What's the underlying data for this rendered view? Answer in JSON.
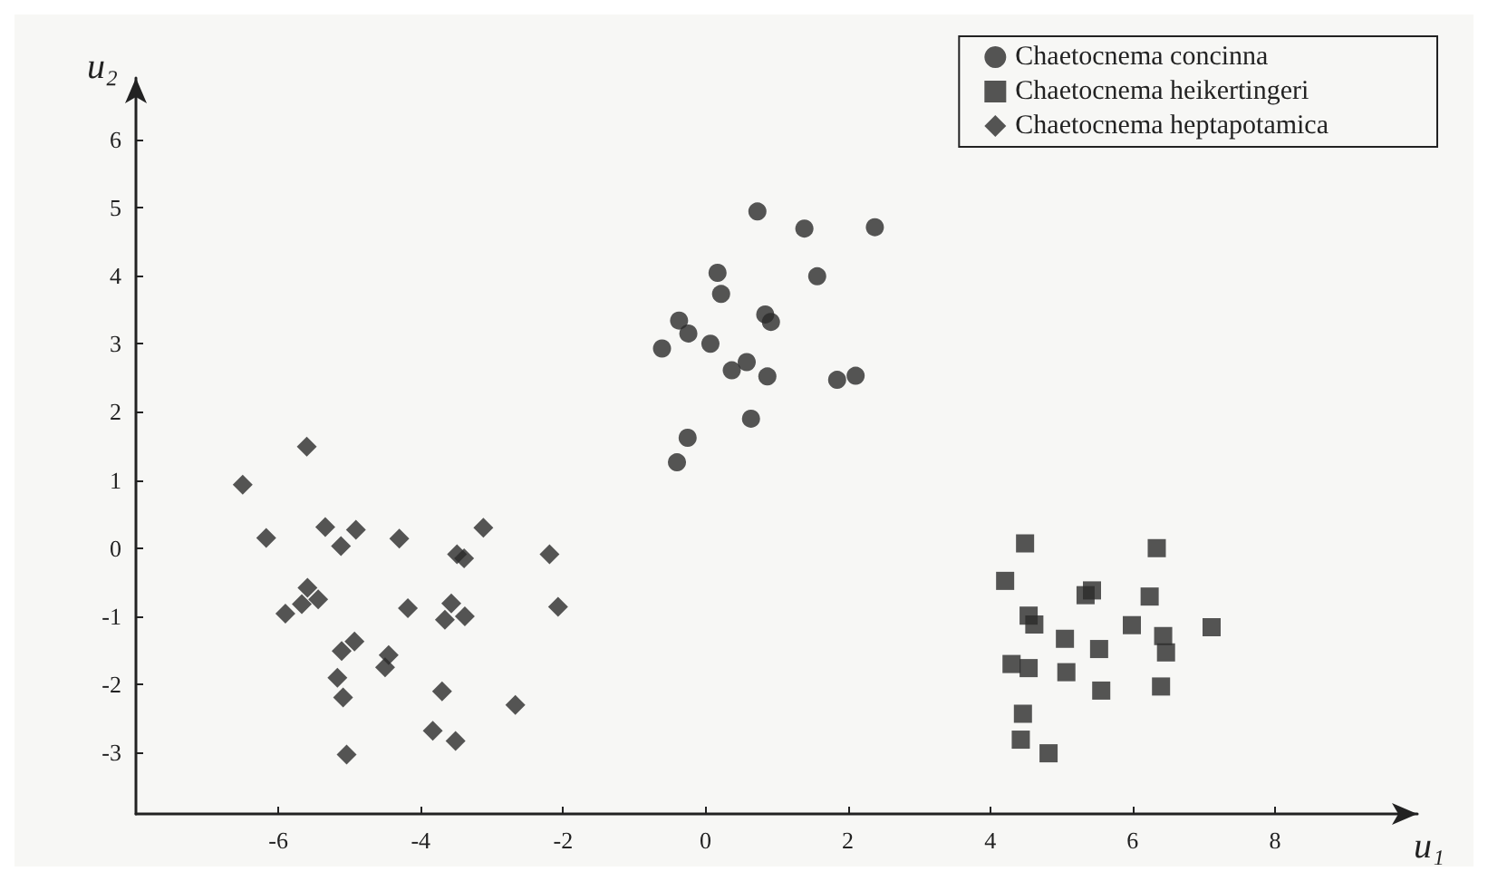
{
  "chart_data": {
    "type": "scatter",
    "xlabel": "u₁",
    "ylabel": "u₂",
    "xlim": [
      -8,
      10
    ],
    "ylim": [
      -3.9,
      6.9
    ],
    "xticks": [
      -6,
      -4,
      -2,
      0,
      2,
      4,
      6,
      8
    ],
    "yticks": [
      -3,
      -2,
      -1,
      0,
      1,
      2,
      3,
      4,
      5,
      6
    ],
    "grid": false,
    "legend": "top right",
    "series": [
      {
        "name": "Chaetocnema concinna",
        "color": "#2b2b2b",
        "marker": "circle",
        "x": [
          0.73,
          1.39,
          2.38,
          0.17,
          1.57,
          0.22,
          0.84,
          0.92,
          -0.37,
          -0.24,
          -0.61,
          0.07,
          0.37,
          0.58,
          0.87,
          1.85,
          2.11,
          0.64,
          -0.25,
          -0.4
        ],
        "values": [
          4.94,
          4.69,
          4.71,
          4.04,
          3.99,
          3.73,
          3.43,
          3.32,
          3.34,
          3.15,
          2.93,
          3.0,
          2.61,
          2.73,
          2.52,
          2.47,
          2.53,
          1.9,
          1.62,
          1.26
        ]
      },
      {
        "name": "Chaetocnema heikertingeri",
        "color": "#2b2b2b",
        "marker": "square",
        "x": [
          4.49,
          6.34,
          4.21,
          5.43,
          5.34,
          6.24,
          4.54,
          4.62,
          5.99,
          7.11,
          6.43,
          5.05,
          6.47,
          5.53,
          4.3,
          4.54,
          5.07,
          5.56,
          6.4,
          4.46,
          4.43,
          4.82
        ],
        "values": [
          0.07,
          0.0,
          -0.48,
          -0.62,
          -0.69,
          -0.71,
          -0.99,
          -1.12,
          -1.13,
          -1.16,
          -1.29,
          -1.33,
          -1.53,
          -1.48,
          -1.7,
          -1.76,
          -1.82,
          -2.09,
          -2.03,
          -2.43,
          -2.81,
          -3.01
        ]
      },
      {
        "name": "Chaetocnema heptapotamica",
        "color": "#2b2b2b",
        "marker": "diamond",
        "x": [
          -5.6,
          -6.5,
          -6.17,
          -5.34,
          -4.91,
          -5.12,
          -4.3,
          -3.12,
          -3.49,
          -3.39,
          -2.19,
          -5.59,
          -5.67,
          -5.44,
          -5.9,
          -4.18,
          -3.57,
          -3.66,
          -3.38,
          -2.07,
          -4.93,
          -5.11,
          -4.45,
          -4.5,
          -5.17,
          -5.09,
          -3.7,
          -2.67,
          -3.83,
          -3.51,
          -5.04
        ],
        "values": [
          1.49,
          0.93,
          0.15,
          0.31,
          0.27,
          0.03,
          0.14,
          0.3,
          -0.09,
          -0.15,
          -0.09,
          -0.58,
          -0.82,
          -0.75,
          -0.96,
          -0.88,
          -0.81,
          -1.05,
          -1.0,
          -0.86,
          -1.37,
          -1.51,
          -1.57,
          -1.75,
          -1.9,
          -2.19,
          -2.1,
          -2.3,
          -2.68,
          -2.83,
          -3.03
        ]
      }
    ]
  }
}
